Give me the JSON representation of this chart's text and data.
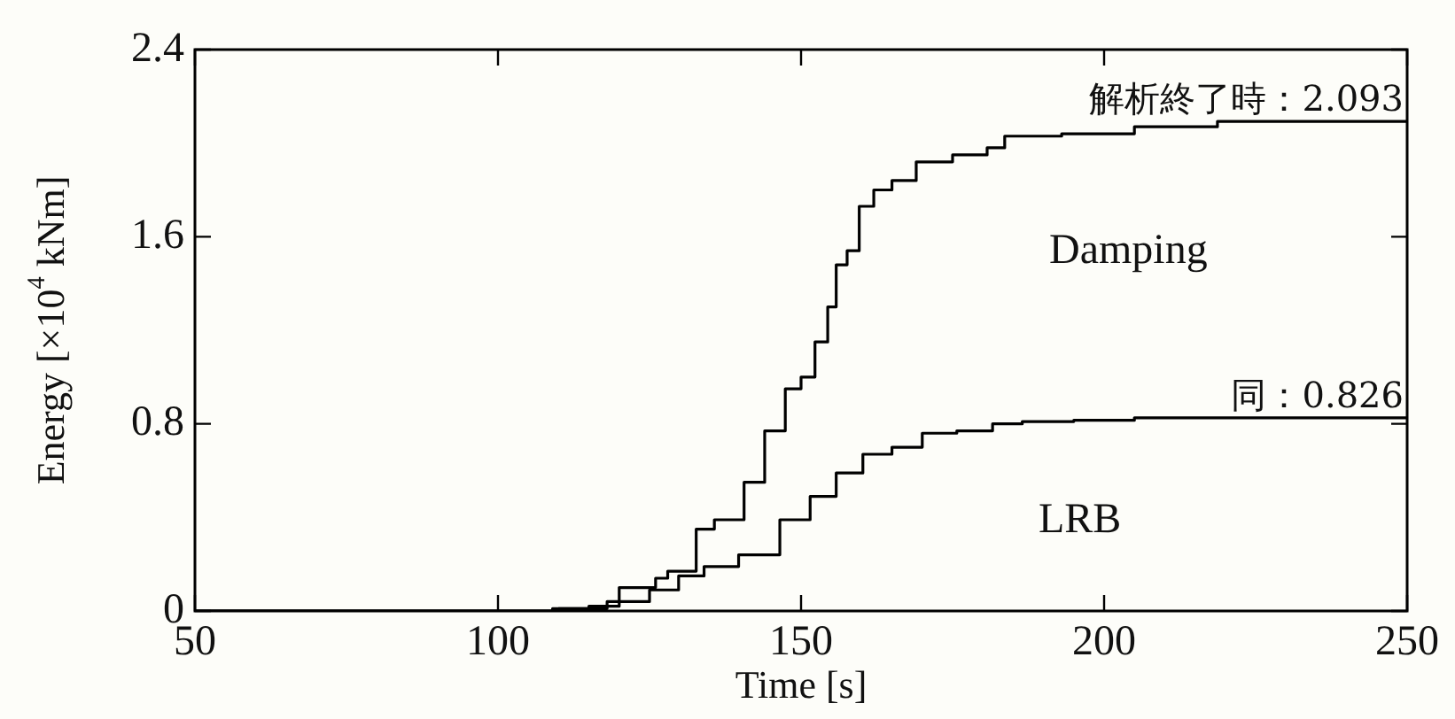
{
  "chart_data": {
    "type": "step",
    "xlabel": "Time [s]",
    "ylabel": "Energy [×10$^{4}$ kNm]",
    "xlim": [
      50,
      250
    ],
    "xticks": [
      50,
      100,
      150,
      200,
      250
    ],
    "ylim": [
      0,
      2.4
    ],
    "yticks": [
      0,
      0.8,
      1.6,
      2.4
    ],
    "grid": false,
    "legend": false,
    "marker": "none",
    "line_style": "solid",
    "series": [
      {
        "name": "Damping",
        "color": "#000000",
        "x": [
          50,
          98,
          110,
          115,
          120,
          126,
          128,
          132.7,
          135.7,
          140.6,
          144,
          147.4,
          150,
          152.3,
          154.4,
          155.8,
          157.6,
          159.6,
          162,
          165,
          169,
          175,
          180.7,
          183.6,
          193,
          205,
          218.7,
          250
        ],
        "values": [
          0,
          0,
          0.01,
          0.02,
          0.1,
          0.14,
          0.17,
          0.35,
          0.39,
          0.55,
          0.77,
          0.95,
          1.0,
          1.15,
          1.3,
          1.48,
          1.54,
          1.73,
          1.8,
          1.84,
          1.92,
          1.95,
          1.98,
          2.03,
          2.04,
          2.07,
          2.093,
          2.093
        ]
      },
      {
        "name": "LRB",
        "color": "#000000",
        "x": [
          50,
          98,
          109,
          118,
          125,
          129.8,
          134,
          139.7,
          146.5,
          151.5,
          155.8,
          160.2,
          165,
          170,
          175.7,
          181.6,
          186.5,
          195,
          205,
          250
        ],
        "values": [
          0,
          0,
          0.01,
          0.04,
          0.09,
          0.15,
          0.19,
          0.24,
          0.39,
          0.49,
          0.59,
          0.67,
          0.7,
          0.76,
          0.77,
          0.8,
          0.81,
          0.815,
          0.826,
          0.826
        ]
      }
    ],
    "annotations": [
      {
        "text": "解析終了時：2.093",
        "x": 250,
        "y": 2.093
      },
      {
        "text": "同：0.826",
        "x": 250,
        "y": 0.826
      }
    ]
  }
}
